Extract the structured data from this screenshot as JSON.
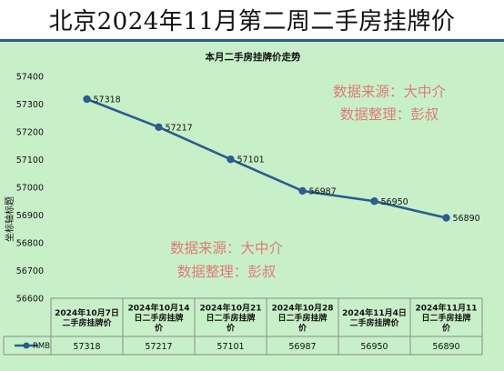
{
  "banner": {
    "title": "北京2024年11月第二周二手房挂牌价"
  },
  "watermarks": [
    {
      "line1": "数据来源：大中介",
      "line2": "数据整理：彭叔"
    },
    {
      "line1": "数据来源：大中介",
      "line2": "数据整理：彭叔"
    }
  ],
  "colors": {
    "background": "#c8f0c8",
    "series": "#2b5d8e",
    "watermark": "#e07a7a"
  },
  "chart_data": {
    "type": "line",
    "title": "本月二手房挂牌价走势",
    "ylabel": "坐标轴标题",
    "xlabel": "",
    "ylim": [
      56600,
      57400
    ],
    "yticks": [
      56600,
      56700,
      56800,
      56900,
      57000,
      57100,
      57200,
      57300,
      57400
    ],
    "grid": false,
    "legend": "table-left",
    "categories": [
      [
        "2024年10月7日",
        "二手房挂牌价"
      ],
      [
        "2024年10月14",
        "日二手房挂牌",
        "价"
      ],
      [
        "2024年10月21",
        "日二手房挂牌",
        "价"
      ],
      [
        "2024年10月28",
        "日二手房挂牌",
        "价"
      ],
      [
        "2024年11月4日",
        "二手房挂牌价"
      ],
      [
        "2024年11月11",
        "日二手房挂牌",
        "价"
      ]
    ],
    "series": [
      {
        "name": "RMB",
        "values": [
          57318,
          57217,
          57101,
          56987,
          56950,
          56890
        ]
      }
    ]
  }
}
